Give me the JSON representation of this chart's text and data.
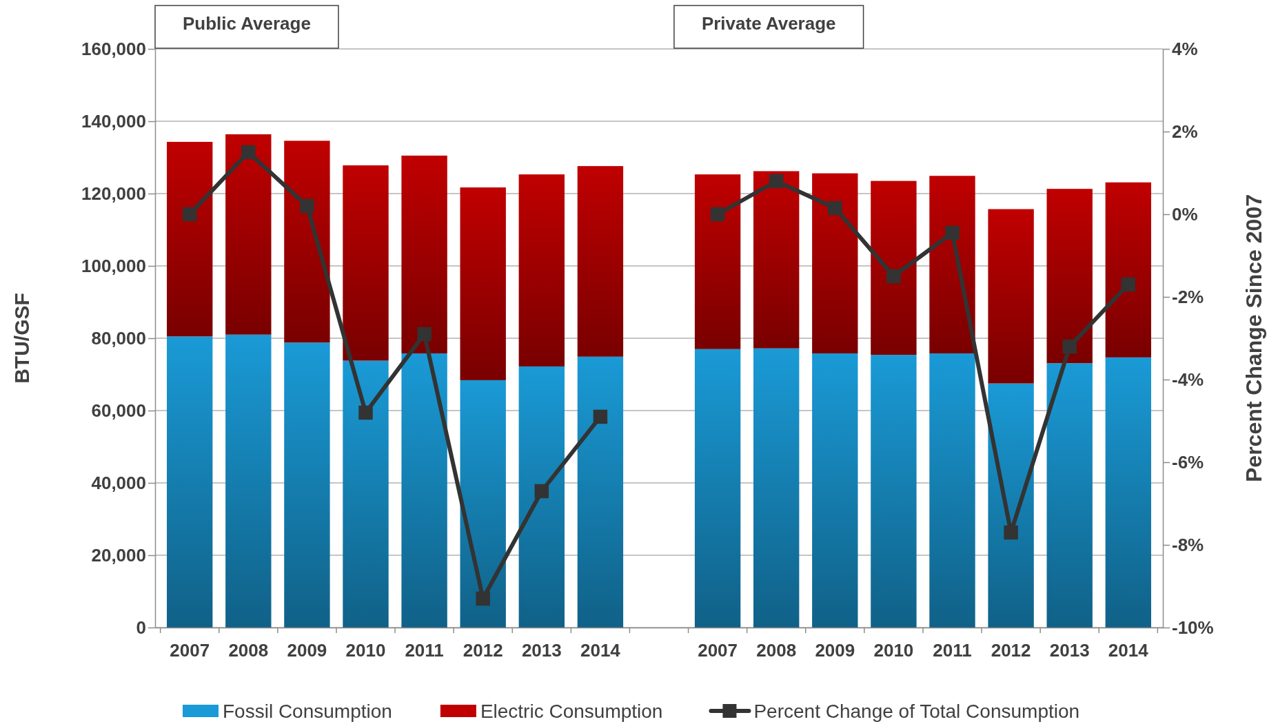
{
  "chart_data": {
    "type": "bar",
    "stacked": true,
    "ylabel": "BTU/GSF",
    "y2label": "Percent Change Since 2007",
    "categories": [
      "2007",
      "2008",
      "2009",
      "2010",
      "2011",
      "2012",
      "2013",
      "2014",
      null,
      "2007",
      "2008",
      "2009",
      "2010",
      "2011",
      "2012",
      "2013",
      "2014"
    ],
    "series": [
      {
        "name": "Fossil Consumption",
        "color": "#1a9ad6",
        "values": [
          80500,
          81000,
          78800,
          73800,
          75800,
          68400,
          72200,
          74900,
          null,
          77000,
          77200,
          75800,
          75400,
          75800,
          67500,
          73100,
          74700
        ]
      },
      {
        "name": "Electric Consumption",
        "color": "#c00000",
        "values": [
          53800,
          55400,
          55800,
          54000,
          54700,
          53300,
          53100,
          52700,
          null,
          48300,
          49000,
          49800,
          48100,
          49100,
          48200,
          48200,
          48400
        ]
      },
      {
        "name": "Percent Change of Total Consumption",
        "type": "line",
        "axis": "y2",
        "color": "#333333",
        "marker": "square",
        "values": [
          0,
          1.5,
          0.2,
          -4.8,
          -2.9,
          -9.3,
          -6.7,
          -4.9,
          null,
          0,
          0.8,
          0.15,
          -1.5,
          -0.45,
          -7.7,
          -3.2,
          -1.7
        ]
      }
    ],
    "ylim": [
      0,
      160000
    ],
    "yticks": [
      {
        "value": 0,
        "label": "0"
      },
      {
        "value": 20000,
        "label": "20,000"
      },
      {
        "value": 40000,
        "label": "40,000"
      },
      {
        "value": 60000,
        "label": "60,000"
      },
      {
        "value": 80000,
        "label": "80,000"
      },
      {
        "value": 100000,
        "label": "100,000"
      },
      {
        "value": 120000,
        "label": "120,000"
      },
      {
        "value": 140000,
        "label": "140,000"
      },
      {
        "value": 160000,
        "label": "160,000"
      }
    ],
    "y2lim": [
      -10,
      4
    ],
    "y2ticks": [
      {
        "value": -10,
        "label": "-10%"
      },
      {
        "value": -8,
        "label": "-8%"
      },
      {
        "value": -6,
        "label": "-6%"
      },
      {
        "value": -4,
        "label": "-4%"
      },
      {
        "value": -2,
        "label": "-2%"
      },
      {
        "value": 0,
        "label": "0%"
      },
      {
        "value": 2,
        "label": "2%"
      },
      {
        "value": 4,
        "label": "4%"
      }
    ],
    "annotations": [
      "Public Average",
      "Private Average"
    ],
    "grid": "y",
    "legend": "bottom"
  }
}
